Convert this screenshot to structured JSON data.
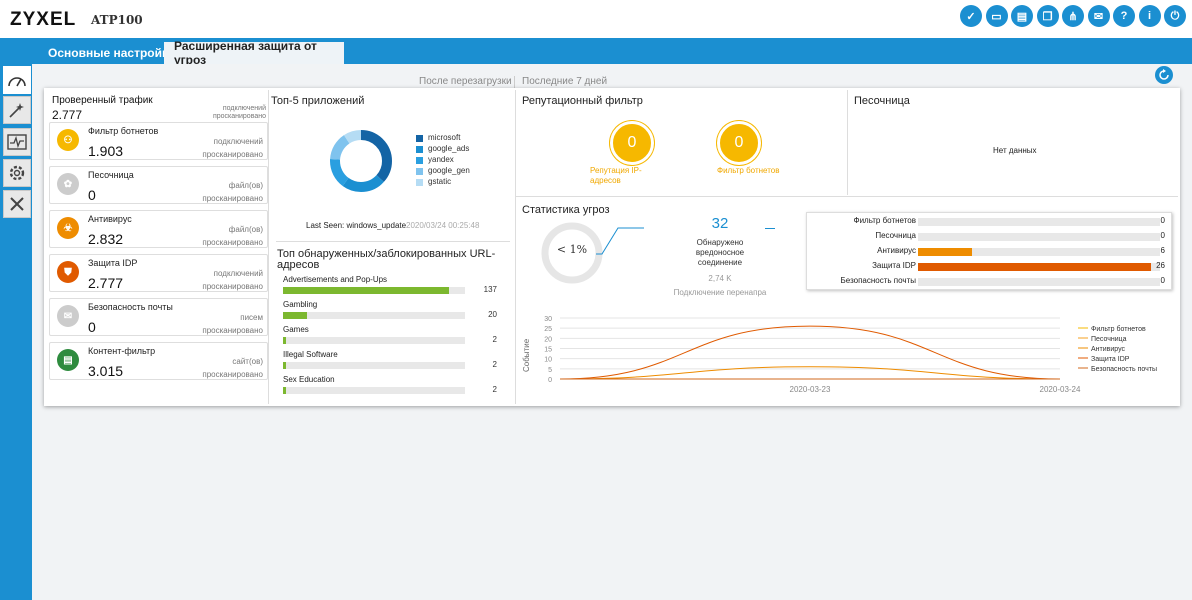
{
  "header": {
    "logo": "ZYXEL",
    "model": "ATP100",
    "icons": [
      "shield-check-icon",
      "console-icon",
      "cli-icon",
      "window-icon",
      "network-icon",
      "chat-icon",
      "help-book-icon",
      "info-icon",
      "logout-icon"
    ]
  },
  "tabs": [
    {
      "label": "Основные настройки",
      "active": false
    },
    {
      "label": "Расширенная защита от угроз",
      "active": true
    }
  ],
  "sidebar": {
    "icons": [
      "dashboard-gauge-icon",
      "wizard-wand-icon",
      "monitor-pulse-icon",
      "gear-icon",
      "tools-icon"
    ]
  },
  "section_headers": {
    "since_reboot": "После перезагрузки",
    "last_7_days": "Последние 7 дней"
  },
  "traffic": {
    "title": "Проверенный трафик",
    "value": "2.777",
    "unit1": "подключений",
    "unit2": "просканировано"
  },
  "cards": [
    {
      "name": "Фильтр ботнетов",
      "value": "1.903",
      "unit1": "подключений",
      "unit2": "просканировано",
      "color": "#f6b800",
      "icon": "botnet-icon"
    },
    {
      "name": "Песочница",
      "value": "0",
      "unit1": "файл(ов)",
      "unit2": "просканировано",
      "color": "#cccccc",
      "icon": "sandbox-icon"
    },
    {
      "name": "Антивирус",
      "value": "2.832",
      "unit1": "файл(ов)",
      "unit2": "просканировано",
      "color": "#ee8c00",
      "icon": "biohazard-icon"
    },
    {
      "name": "Защита IDP",
      "value": "2.777",
      "unit1": "подключений",
      "unit2": "просканировано",
      "color": "#e05a00",
      "icon": "idp-shield-icon"
    },
    {
      "name": "Безопасность почты",
      "value": "0",
      "unit1": "писем",
      "unit2": "просканировано",
      "color": "#cccccc",
      "icon": "mail-icon"
    },
    {
      "name": "Контент-фильтр",
      "value": "3.015",
      "unit1": "сайт(ов)",
      "unit2": "просканировано",
      "color": "#2e8b3e",
      "icon": "content-filter-icon"
    }
  ],
  "top_apps": {
    "title": "Топ-5 приложений",
    "legend": [
      {
        "name": "microsoft",
        "color": "#1464a5"
      },
      {
        "name": "google_ads",
        "color": "#1b8fd1"
      },
      {
        "name": "yandex",
        "color": "#2a9fe0"
      },
      {
        "name": "google_gen",
        "color": "#7fc3ee"
      },
      {
        "name": "gstatic",
        "color": "#b5dcf4"
      }
    ],
    "last_seen_label": "Last Seen: windows_update",
    "last_seen_time": "2020/03/24 00:25:48"
  },
  "top_urls": {
    "title": "Топ обнаруженных/заблокированных URL-адресов",
    "items": [
      {
        "name": "Advertisements and Pop-Ups",
        "count": 137
      },
      {
        "name": "Gambling",
        "count": 20
      },
      {
        "name": "Games",
        "count": 2
      },
      {
        "name": "Illegal Software",
        "count": 2
      },
      {
        "name": "Sex Education",
        "count": 2
      }
    ],
    "max": 150
  },
  "reputation": {
    "title": "Репутационный фильтр",
    "ip": {
      "value": "0",
      "label": "Репутация IP-адресов"
    },
    "botnet": {
      "value": "0",
      "label": "Фильтр ботнетов"
    }
  },
  "sandbox": {
    "title": "Песочница",
    "empty": "Нет данных"
  },
  "threat_stats": {
    "title": "Статистика угроз",
    "percent": "< 1%",
    "detected_value": "32",
    "detected_label": "Обнаружено вредоносное соединение",
    "total_value": "2,74 K",
    "total_label": "Подключение перенапра",
    "bars": [
      {
        "name": "Фильтр ботнетов",
        "count": 0,
        "color": "#f6b800"
      },
      {
        "name": "Песочница",
        "count": 0,
        "color": "#cccccc"
      },
      {
        "name": "Антивирус",
        "count": 6,
        "color": "#ee8c00"
      },
      {
        "name": "Защита IDP",
        "count": 26,
        "color": "#e05a00"
      },
      {
        "name": "Безопасность почты",
        "count": 0,
        "color": "#cccccc"
      }
    ],
    "bar_max": 27
  },
  "chart_data": {
    "type": "line",
    "ylabel": "Событие",
    "ylim": [
      0,
      30
    ],
    "yticks": [
      0,
      5,
      10,
      15,
      20,
      25,
      30
    ],
    "x": [
      "2020-03-22",
      "2020-03-23",
      "2020-03-24"
    ],
    "xticks_shown": [
      "2020-03-23",
      "2020-03-24"
    ],
    "series": [
      {
        "name": "Фильтр ботнетов",
        "color": "#f6b800",
        "values": [
          0,
          0,
          0
        ]
      },
      {
        "name": "Песочница",
        "color": "#f4a020",
        "values": [
          0,
          0,
          0
        ]
      },
      {
        "name": "Антивирус",
        "color": "#ee8c00",
        "values": [
          0,
          6,
          0
        ]
      },
      {
        "name": "Защита IDP",
        "color": "#e05a00",
        "values": [
          0,
          26,
          0
        ]
      },
      {
        "name": "Безопасность почты",
        "color": "#d2691e",
        "values": [
          0,
          0,
          0
        ]
      }
    ],
    "legend_position": "right"
  }
}
